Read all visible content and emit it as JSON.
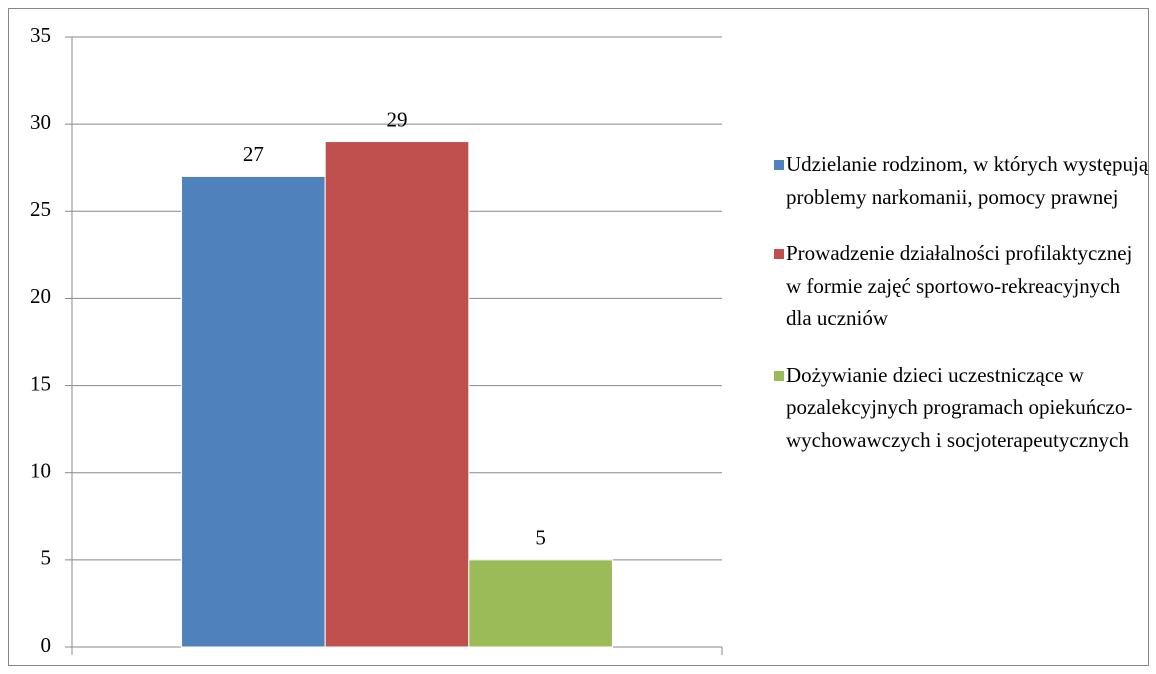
{
  "chart_data": {
    "type": "bar",
    "categories": [
      null
    ],
    "series": [
      {
        "name": "Udzielanie rodzinom, w których występują problemy narkomanii, pomocy prawnej",
        "color": "#4f81bd",
        "values": [
          27
        ]
      },
      {
        "name": "Prowadzenie działalności profilaktycznej w formie zajęć sportowo-rekreacyjnych dla uczniów",
        "color": "#c0504d",
        "values": [
          29
        ]
      },
      {
        "name": "Dożywianie dzieci uczestniczące w pozalekcyjnych programach opiekuńczo-wychowawczych i socjoterapeutycznych",
        "color": "#9bbb59",
        "values": [
          5
        ]
      }
    ],
    "ylim": [
      0,
      35
    ],
    "yticks": [
      0,
      5,
      10,
      15,
      20,
      25,
      30,
      35
    ],
    "grid": true,
    "legend": "right"
  }
}
